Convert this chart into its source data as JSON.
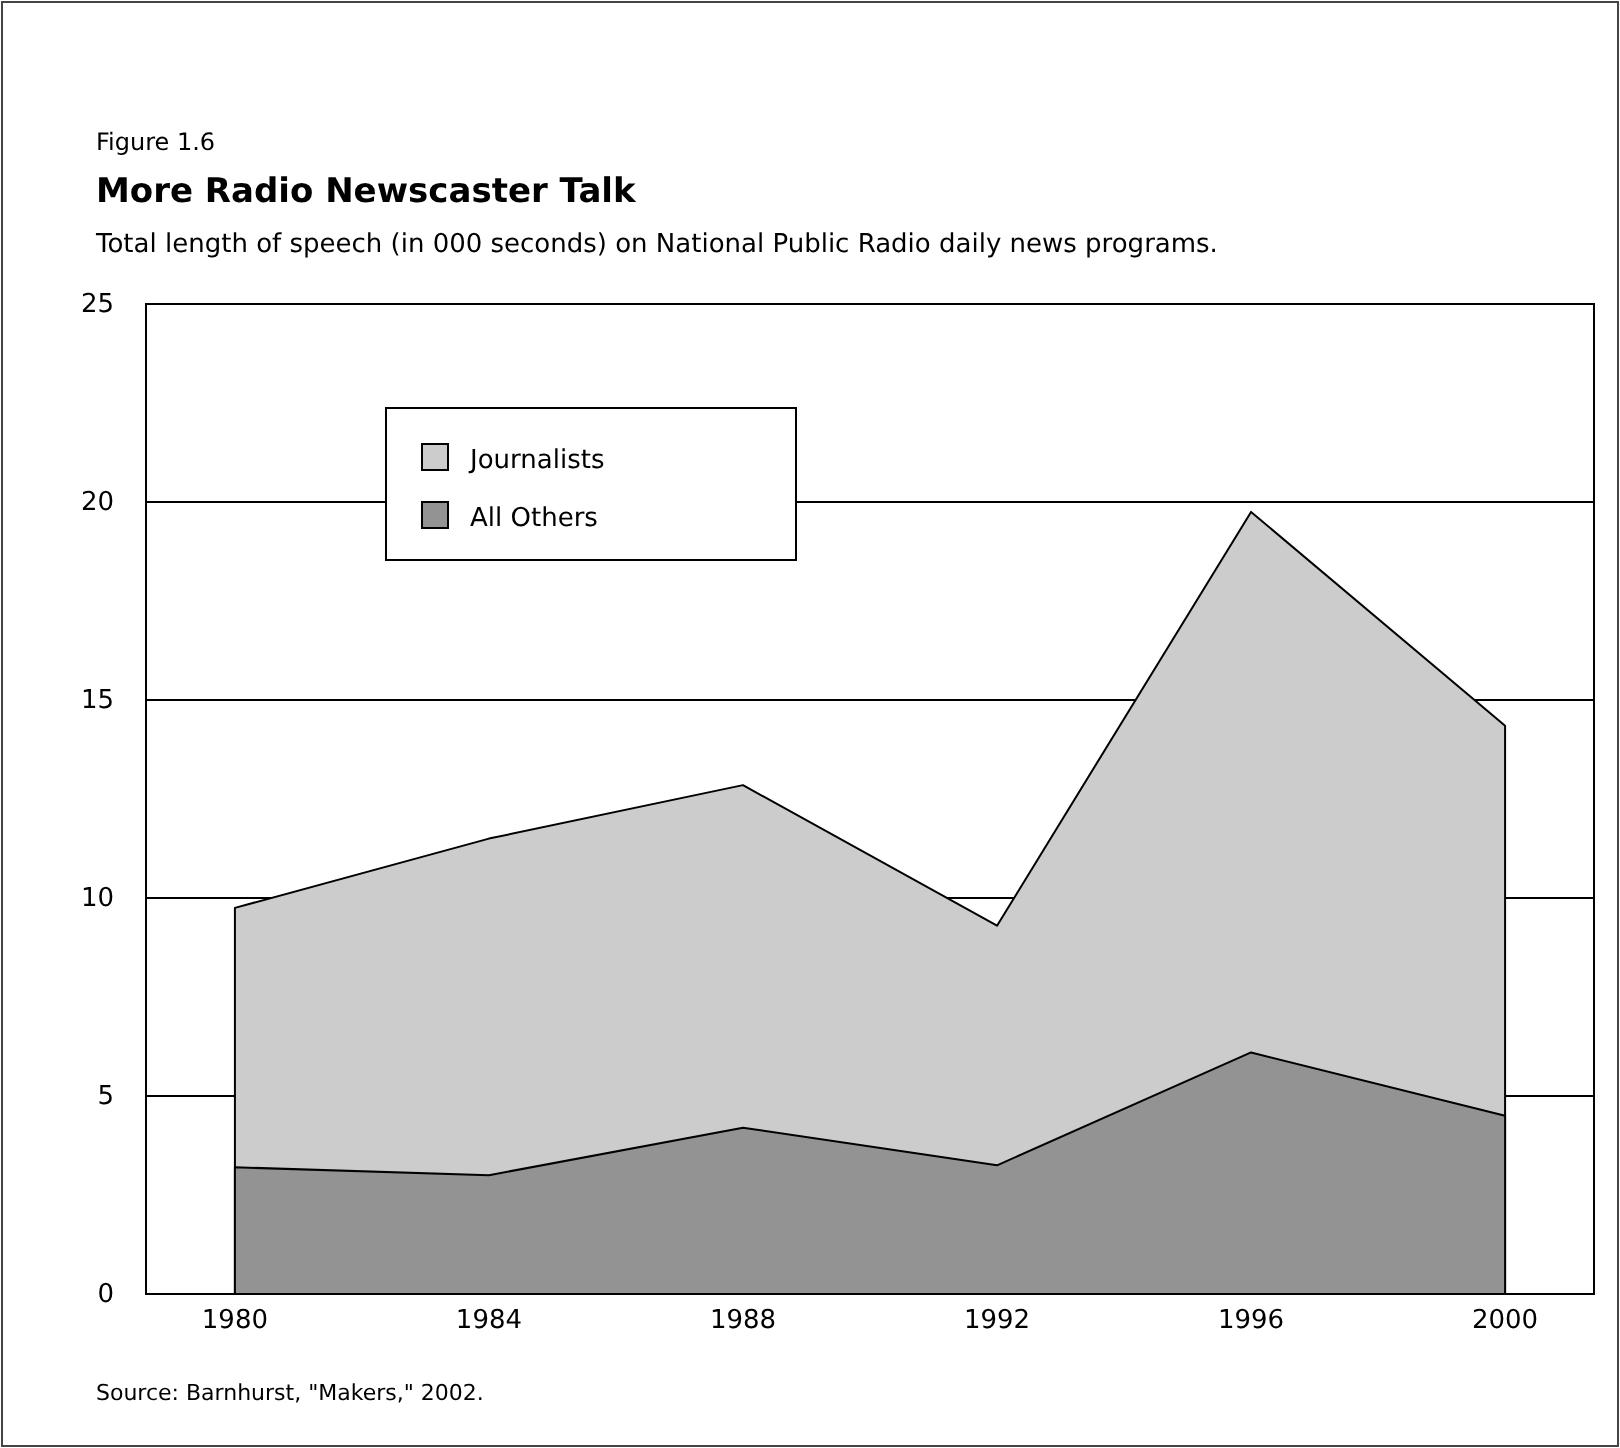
{
  "chart_data": {
    "type": "area",
    "title": "More Radio Newscaster Talk",
    "subtitle": "Total length of speech (in 000 seconds) on National Public Radio daily news programs.",
    "annotations": [
      "Figure 1.6",
      "Source: Barnhurst, \"Makers,\" 2002."
    ],
    "categories": [
      "1980",
      "1984",
      "1988",
      "1992",
      "1996",
      "2000"
    ],
    "series": [
      {
        "name": "Journalists",
        "color": "#cccccc",
        "values": [
          9.75,
          11.5,
          12.85,
          9.3,
          19.75,
          14.35
        ]
      },
      {
        "name": "All Others",
        "color": "#939393",
        "values": [
          3.2,
          3.0,
          4.2,
          3.25,
          6.1,
          4.5
        ]
      }
    ],
    "ylim": [
      0,
      25
    ],
    "yticks": [
      0,
      5,
      10,
      15,
      20,
      25
    ],
    "grid": "y",
    "legend": "top left"
  }
}
